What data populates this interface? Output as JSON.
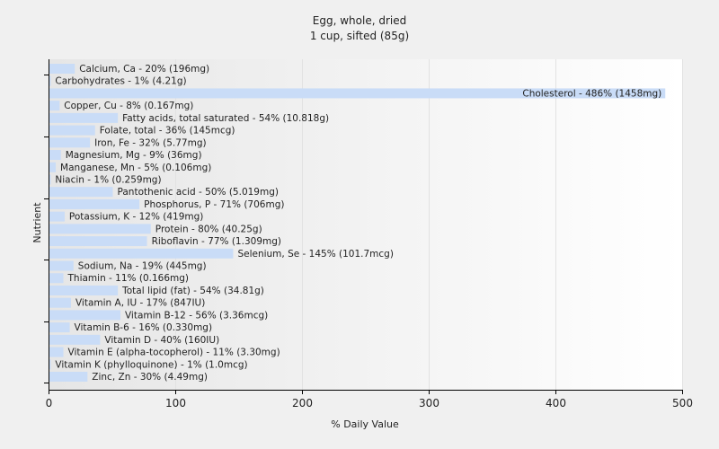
{
  "chart_data": {
    "type": "bar",
    "orientation": "horizontal",
    "title": "Egg, whole, dried",
    "subtitle": "1 cup, sifted (85g)",
    "xlabel": "% Daily Value",
    "ylabel": "Nutrient",
    "xlim": [
      0,
      500
    ],
    "xticks": [
      0,
      100,
      200,
      300,
      400,
      500
    ],
    "grid": true,
    "bar_color": "#c9dcf7",
    "categories": [
      "Calcium, Ca",
      "Carbohydrates",
      "Cholesterol",
      "Copper, Cu",
      "Fatty acids, total saturated",
      "Folate, total",
      "Iron, Fe",
      "Magnesium, Mg",
      "Manganese, Mn",
      "Niacin",
      "Pantothenic acid",
      "Phosphorus, P",
      "Potassium, K",
      "Protein",
      "Riboflavin",
      "Selenium, Se",
      "Sodium, Na",
      "Thiamin",
      "Total lipid (fat)",
      "Vitamin A, IU",
      "Vitamin B-12",
      "Vitamin B-6",
      "Vitamin D",
      "Vitamin E (alpha-tocopherol)",
      "Vitamin K (phylloquinone)",
      "Zinc, Zn"
    ],
    "values": [
      20,
      1,
      486,
      8,
      54,
      36,
      32,
      9,
      5,
      1,
      50,
      71,
      12,
      80,
      77,
      145,
      19,
      11,
      54,
      17,
      56,
      16,
      40,
      11,
      1,
      30
    ],
    "labels": [
      "Calcium, Ca - 20% (196mg)",
      "Carbohydrates - 1% (4.21g)",
      "Cholesterol - 486% (1458mg)",
      "Copper, Cu - 8% (0.167mg)",
      "Fatty acids, total saturated - 54% (10.818g)",
      "Folate, total - 36% (145mcg)",
      "Iron, Fe - 32% (5.77mg)",
      "Magnesium, Mg - 9% (36mg)",
      "Manganese, Mn - 5% (0.106mg)",
      "Niacin - 1% (0.259mg)",
      "Pantothenic acid - 50% (5.019mg)",
      "Phosphorus, P - 71% (706mg)",
      "Potassium, K - 12% (419mg)",
      "Protein - 80% (40.25g)",
      "Riboflavin - 77% (1.309mg)",
      "Selenium, Se - 145% (101.7mcg)",
      "Sodium, Na - 19% (445mg)",
      "Thiamin - 11% (0.166mg)",
      "Total lipid (fat) - 54% (34.81g)",
      "Vitamin A, IU - 17% (847IU)",
      "Vitamin B-12 - 56% (3.36mcg)",
      "Vitamin B-6 - 16% (0.330mg)",
      "Vitamin D - 40% (160IU)",
      "Vitamin E (alpha-tocopherol) - 11% (3.30mg)",
      "Vitamin K (phylloquinone) - 1% (1.0mcg)",
      "Zinc, Zn - 30% (4.49mg)"
    ]
  }
}
